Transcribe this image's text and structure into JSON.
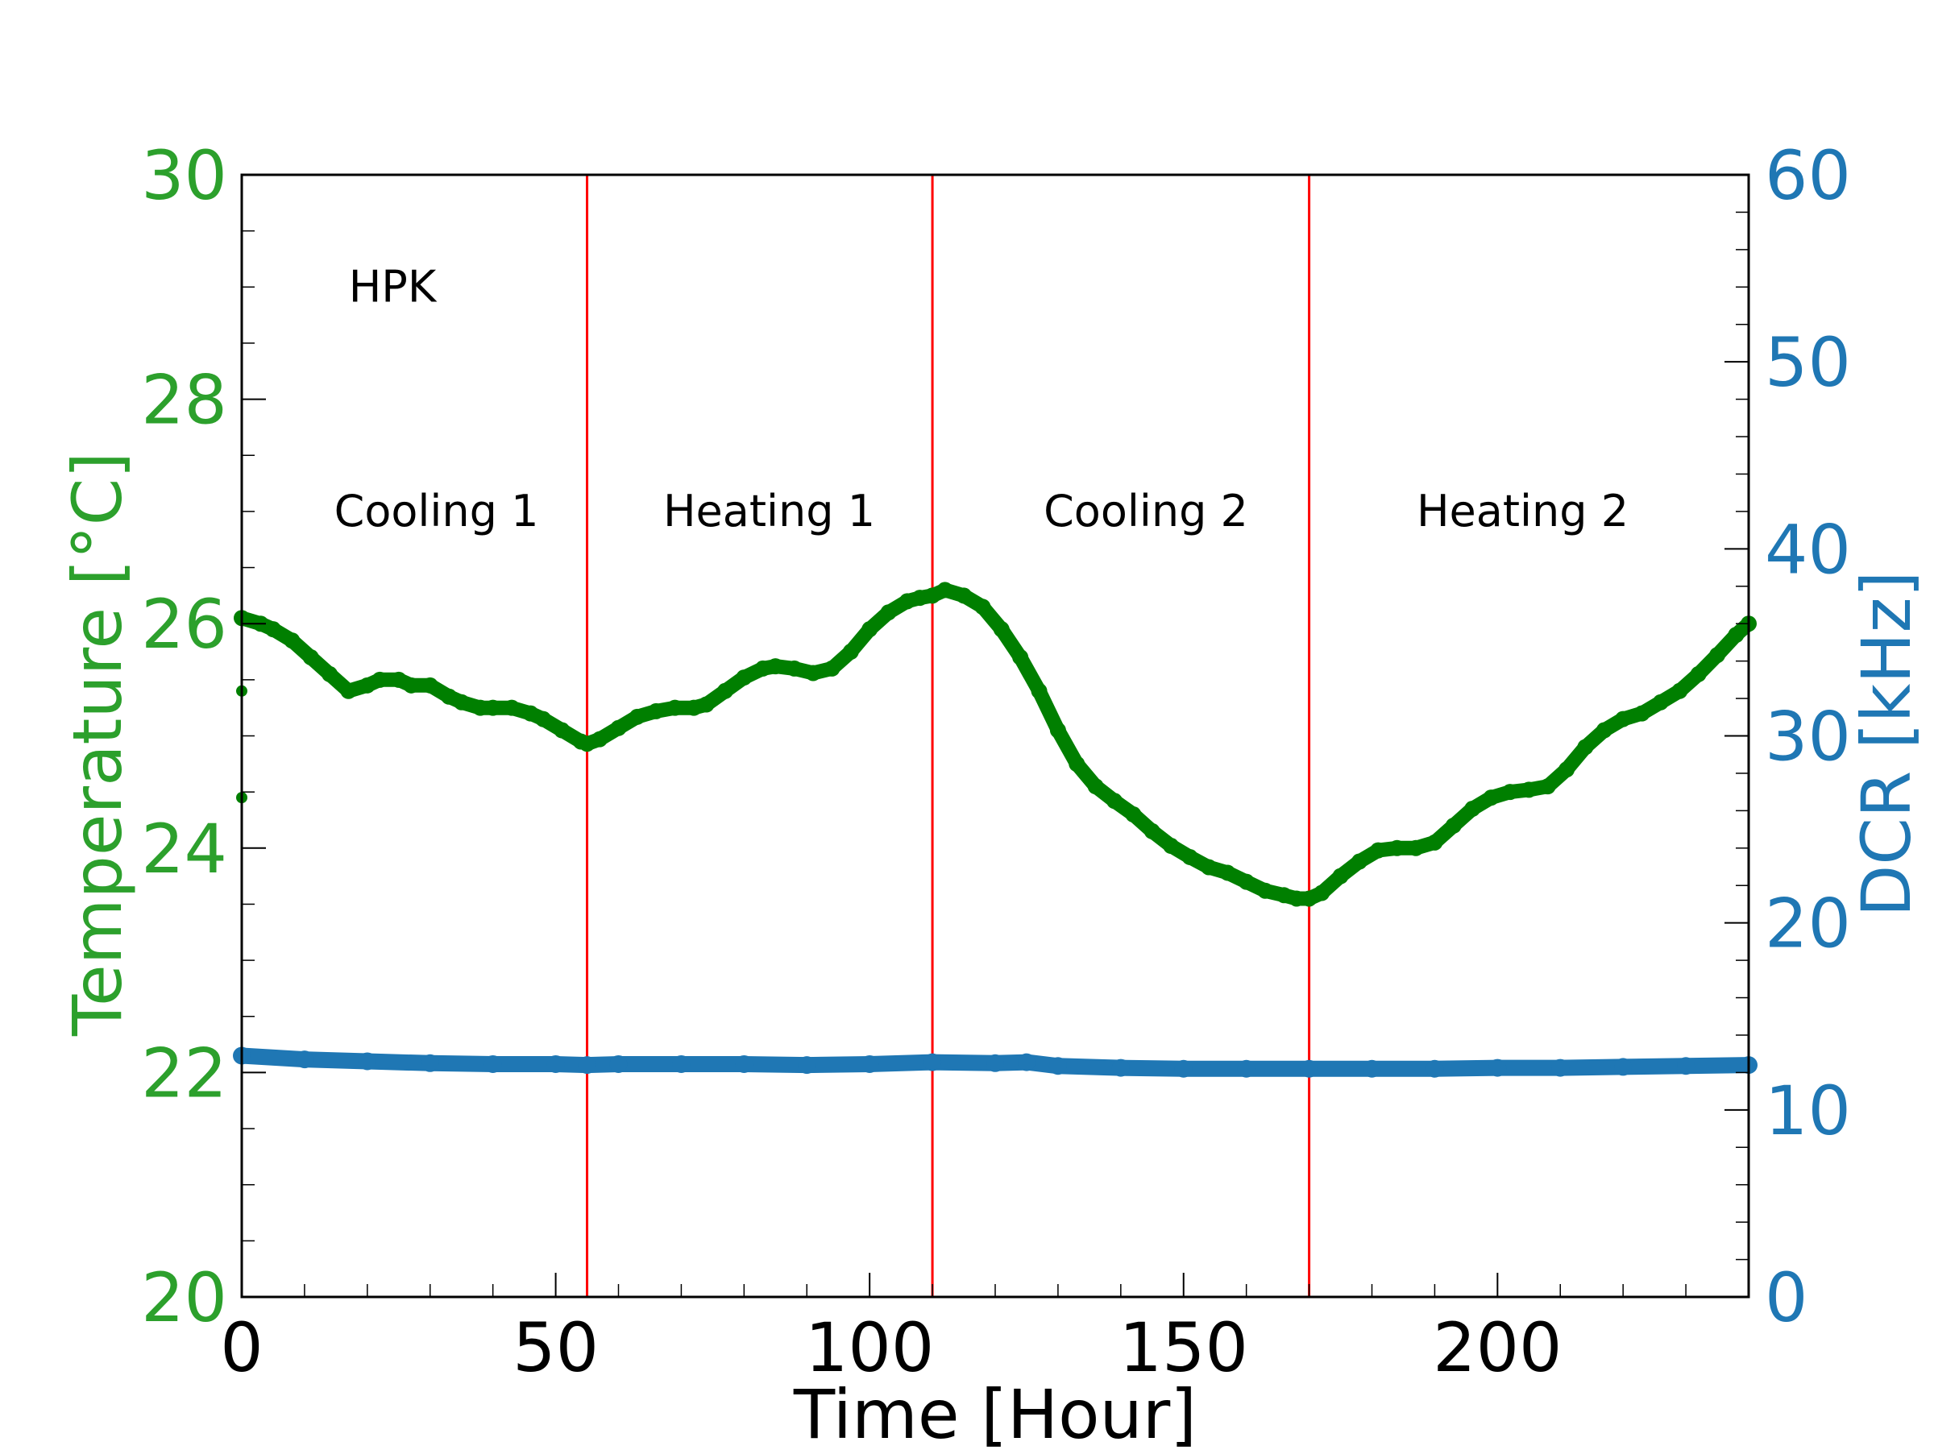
{
  "chart_data": {
    "type": "line",
    "title": "",
    "xlabel": "Time [Hour]",
    "ylabel_left": "Temperature [°C]",
    "ylabel_right": "DCR [kHz]",
    "xlim": [
      0,
      240
    ],
    "ylim_left": [
      20,
      30
    ],
    "ylim_right": [
      0,
      60
    ],
    "x_ticks": [
      0,
      50,
      100,
      150,
      200
    ],
    "x_tick_labels": [
      "0",
      "50",
      "100",
      "150",
      "200"
    ],
    "y_left_ticks": [
      20,
      22,
      24,
      26,
      28,
      30
    ],
    "y_left_tick_labels": [
      "20",
      "22",
      "24",
      "26",
      "28",
      "30"
    ],
    "y_right_ticks": [
      0,
      10,
      20,
      30,
      40,
      50,
      60
    ],
    "y_right_tick_labels": [
      "0",
      "10",
      "20",
      "30",
      "40",
      "50",
      "60"
    ],
    "colors": {
      "temperature": "#007f00",
      "dcr": "#1f77b4",
      "left_axis": "#2ca02c",
      "right_axis": "#1f77b4",
      "phase_lines": "#ff0000",
      "frame": "#000000"
    },
    "phase_boundaries": [
      55,
      110,
      170
    ],
    "annotations": [
      {
        "text": "HPK",
        "x": 24,
        "y": 29.0
      },
      {
        "text": "Cooling 1",
        "x": 31,
        "y": 27.0
      },
      {
        "text": "Heating 1",
        "x": 84,
        "y": 27.0
      },
      {
        "text": "Cooling 2",
        "x": 144,
        "y": 27.0
      },
      {
        "text": "Heating 2",
        "x": 204,
        "y": 27.0
      }
    ],
    "series": [
      {
        "name": "Temperature",
        "axis": "left",
        "x": [
          0,
          3,
          5,
          8,
          11,
          14,
          17,
          20,
          22,
          25,
          27,
          30,
          33,
          35,
          38,
          40,
          43,
          46,
          48,
          51,
          54,
          55,
          57,
          60,
          63,
          66,
          69,
          72,
          74,
          77,
          80,
          83,
          85,
          88,
          91,
          94,
          97,
          100,
          103,
          106,
          108,
          110,
          112,
          115,
          118,
          121,
          124,
          127,
          130,
          133,
          136,
          139,
          142,
          145,
          148,
          151,
          154,
          157,
          160,
          163,
          166,
          168,
          170,
          172,
          175,
          178,
          181,
          184,
          187,
          190,
          193,
          196,
          199,
          202,
          205,
          208,
          211,
          214,
          217,
          220,
          223,
          226,
          229,
          232,
          235,
          238,
          240
        ],
        "values": [
          26.05,
          26.0,
          25.95,
          25.85,
          25.7,
          25.55,
          25.4,
          25.45,
          25.5,
          25.5,
          25.45,
          25.45,
          25.35,
          25.3,
          25.25,
          25.25,
          25.25,
          25.2,
          25.15,
          25.05,
          24.95,
          24.93,
          24.97,
          25.07,
          25.17,
          25.22,
          25.25,
          25.25,
          25.28,
          25.4,
          25.52,
          25.6,
          25.62,
          25.6,
          25.56,
          25.6,
          25.75,
          25.95,
          26.1,
          26.2,
          26.23,
          26.25,
          26.3,
          26.25,
          26.15,
          25.95,
          25.7,
          25.4,
          25.05,
          24.75,
          24.55,
          24.42,
          24.3,
          24.15,
          24.02,
          23.92,
          23.83,
          23.78,
          23.7,
          23.62,
          23.58,
          23.55,
          23.55,
          23.6,
          23.75,
          23.88,
          23.98,
          24.0,
          24.0,
          24.05,
          24.2,
          24.35,
          24.45,
          24.5,
          24.52,
          24.55,
          24.7,
          24.9,
          25.05,
          25.15,
          25.2,
          25.3,
          25.4,
          25.55,
          25.72,
          25.9,
          26.0
        ]
      },
      {
        "name": "DCR",
        "axis": "right",
        "x": [
          0,
          10,
          20,
          30,
          40,
          50,
          55,
          60,
          70,
          80,
          90,
          100,
          110,
          120,
          125,
          130,
          140,
          150,
          160,
          170,
          180,
          190,
          200,
          210,
          220,
          230,
          240
        ],
        "values": [
          12.9,
          12.7,
          12.6,
          12.5,
          12.45,
          12.45,
          12.4,
          12.45,
          12.45,
          12.45,
          12.4,
          12.45,
          12.55,
          12.5,
          12.55,
          12.35,
          12.25,
          12.2,
          12.2,
          12.2,
          12.2,
          12.2,
          12.25,
          12.25,
          12.3,
          12.35,
          12.4
        ]
      }
    ]
  }
}
